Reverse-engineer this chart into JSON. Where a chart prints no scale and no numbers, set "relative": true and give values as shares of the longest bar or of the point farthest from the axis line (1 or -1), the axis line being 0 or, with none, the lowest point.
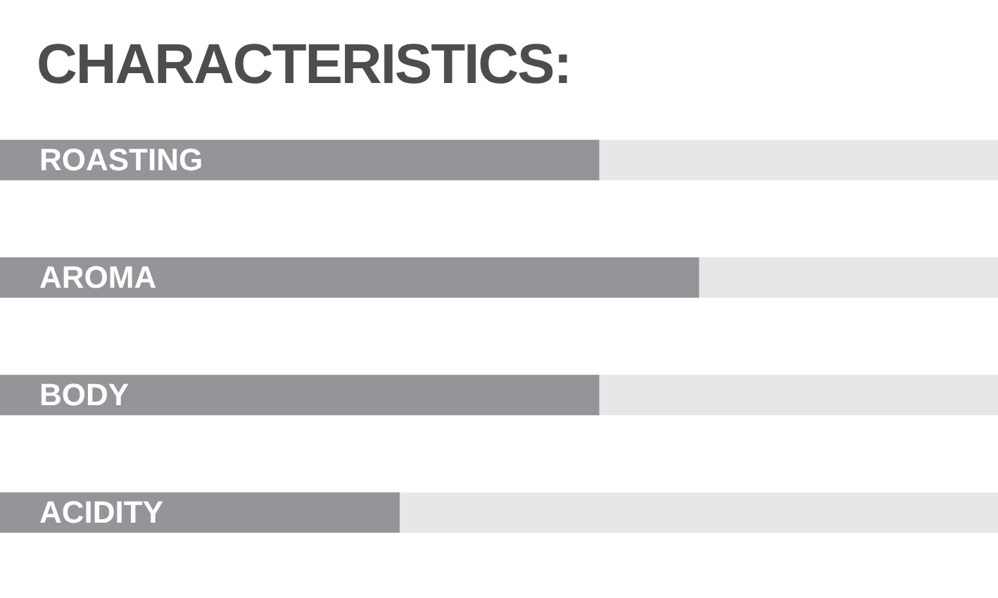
{
  "chart_data": {
    "type": "bar",
    "orientation": "horizontal",
    "stacked": true,
    "relative": true,
    "title": "CHARACTERISTICS:",
    "categories": [
      "ROASTING",
      "AROMA",
      "BODY",
      "ACIDITY"
    ],
    "series": [
      {
        "color": "#939598",
        "values": [
          0.6,
          0.7,
          0.6,
          0.4
        ]
      },
      {
        "color": "#e6e7e8",
        "values": [
          0.4,
          0.3,
          0.4,
          0.6
        ]
      }
    ]
  }
}
